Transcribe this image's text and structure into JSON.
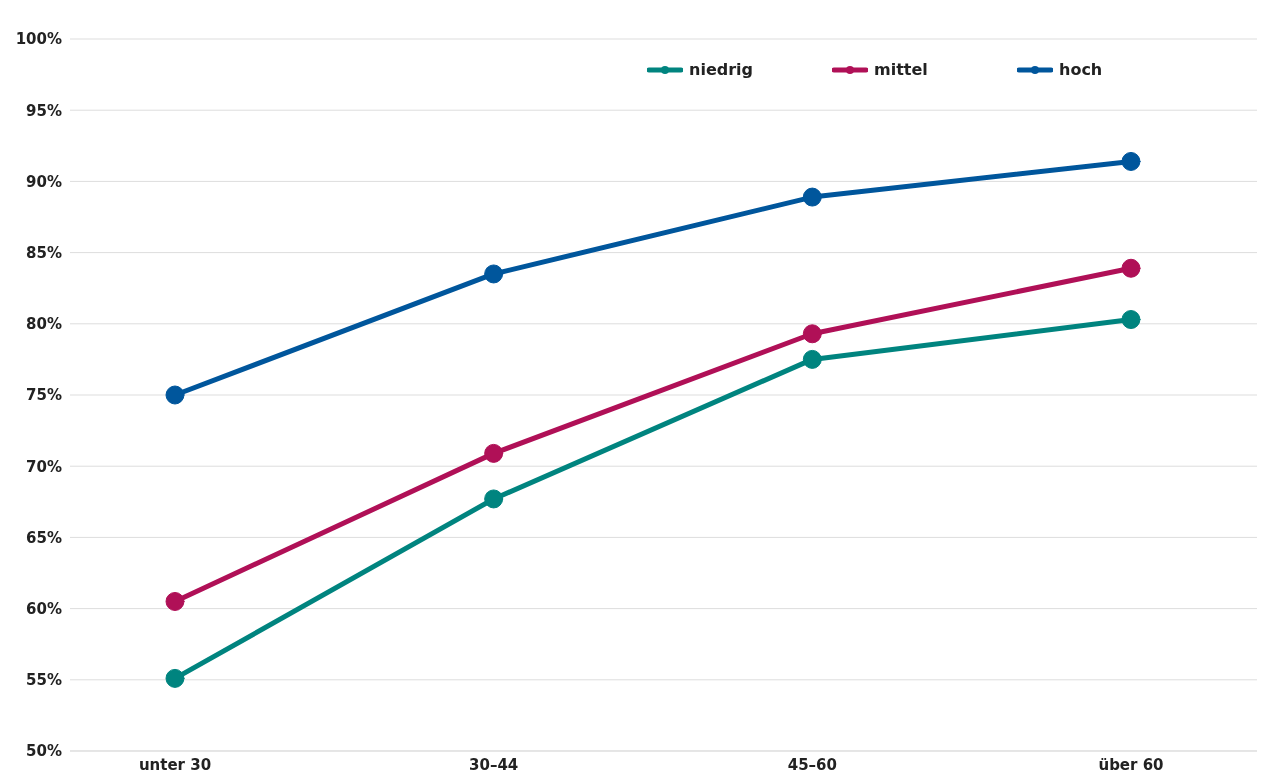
{
  "chart_data": {
    "type": "line",
    "categories": [
      "unter 30",
      "30–44",
      "45–60",
      "über 60"
    ],
    "series": [
      {
        "name": "niedrig",
        "color": "#00847f",
        "values": [
          55.1,
          67.7,
          77.5,
          80.3
        ]
      },
      {
        "name": "mittel",
        "color": "#b01057",
        "values": [
          60.5,
          70.9,
          79.3,
          83.9
        ]
      },
      {
        "name": "hoch",
        "color": "#00569c",
        "values": [
          75,
          83.5,
          88.9,
          91.4
        ]
      }
    ],
    "ylim": [
      50,
      100
    ],
    "yticks": [
      {
        "value": 50,
        "label": "50%"
      },
      {
        "value": 55,
        "label": "55%"
      },
      {
        "value": 60,
        "label": "60%"
      },
      {
        "value": 65,
        "label": "65%"
      },
      {
        "value": 70,
        "label": "70%"
      },
      {
        "value": 75,
        "label": "75%"
      },
      {
        "value": 80,
        "label": "80%"
      },
      {
        "value": 85,
        "label": "85%"
      },
      {
        "value": 90,
        "label": "90%"
      },
      {
        "value": 95,
        "label": "95%"
      },
      {
        "value": 100,
        "label": "100%"
      }
    ],
    "grid": "y",
    "legend": "top right",
    "marker": "circle",
    "line_style": "solid"
  }
}
